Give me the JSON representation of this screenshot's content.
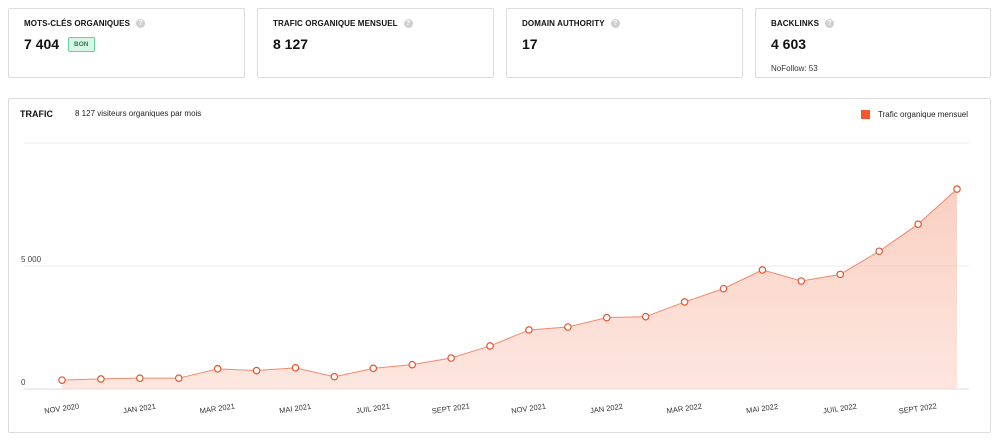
{
  "cards": [
    {
      "title": "MOTS-CLÉS ORGANIQUES",
      "value": "7 404",
      "badge": "BON"
    },
    {
      "title": "TRAFIC ORGANIQUE MENSUEL",
      "value": "8 127"
    },
    {
      "title": "DOMAIN AUTHORITY",
      "value": "17"
    },
    {
      "title": "BACKLINKS",
      "value": "4 603",
      "sub": "NoFollow: 53"
    }
  ],
  "help_icon": "question-mark-icon",
  "colors": {
    "accent": "#f4572d",
    "line": "#f08a6e",
    "badge_bg": "#d8f5e6",
    "badge_border": "#5fd49a",
    "badge_text": "#2e7d4f"
  },
  "chart_panel": {
    "title": "TRAFIC",
    "subtitle": "8 127 visiteurs organiques par mois",
    "legend_label": "Trafic organique mensuel"
  },
  "chart_data": {
    "type": "area",
    "title": "TRAFIC",
    "x": [
      "Nov 2020",
      "Déc 2020",
      "Jan 2021",
      "Fév 2021",
      "Mar 2021",
      "Avr 2021",
      "Mai 2021",
      "Juin 2021",
      "Juil 2021",
      "Août 2021",
      "Sept 2021",
      "Oct 2021",
      "Nov 2021",
      "Déc 2021",
      "Jan 2022",
      "Fév 2022",
      "Mar 2022",
      "Avr 2022",
      "Mai 2022",
      "Juin 2022",
      "Juil 2022",
      "Août 2022",
      "Sept 2022",
      "Oct 2022"
    ],
    "x_tick_labels": [
      "NOV 2020",
      "JAN 2021",
      "MAR 2021",
      "MAI 2021",
      "JUIL 2021",
      "SEPT 2021",
      "NOV 2021",
      "JAN 2022",
      "MAR 2022",
      "MAI 2022",
      "JUIL 2022",
      "SEPT 2022"
    ],
    "series": [
      {
        "name": "Trafic organique mensuel",
        "values": [
          360,
          410,
          440,
          440,
          820,
          750,
          860,
          500,
          840,
          990,
          1260,
          1750,
          2400,
          2520,
          2900,
          2940,
          3540,
          4080,
          4840,
          4390,
          4660,
          5600,
          6700,
          8127
        ]
      }
    ],
    "y_ticks": [
      0,
      5000
    ],
    "y_tick_labels": [
      "0",
      "5 000"
    ],
    "ylim": [
      0,
      10000
    ],
    "grid": true,
    "legend": "top-right"
  }
}
